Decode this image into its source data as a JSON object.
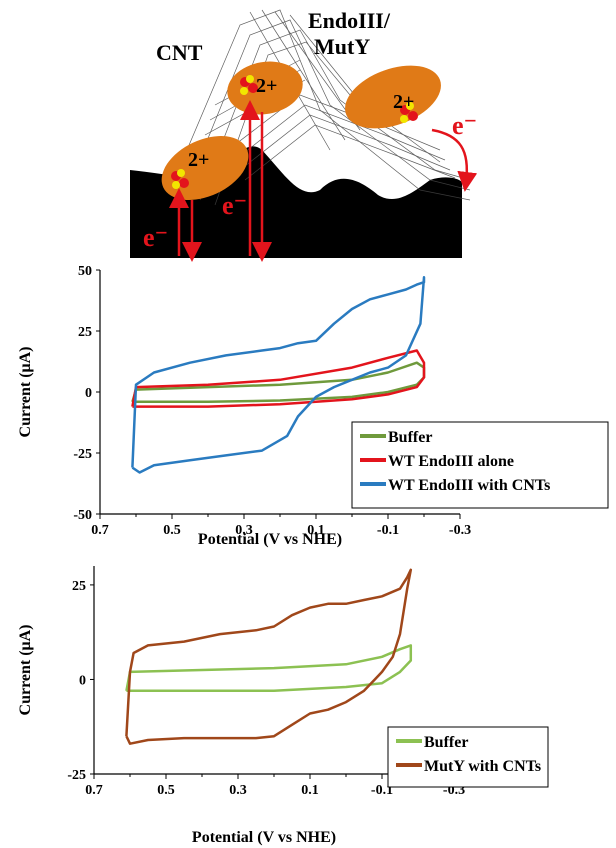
{
  "schematic": {
    "label_cnt": "CNT",
    "label_enzyme_line1": "EndoIII/",
    "label_enzyme_line2": "MutY",
    "cluster_charge": "2+",
    "electron": "e⁻",
    "colors": {
      "protein": "#e07a17",
      "arrow": "#e3141c",
      "surface": "#000000",
      "cluster_iron": "#e3141c",
      "cluster_sulfur": "#f2e600"
    }
  },
  "chart_data": [
    {
      "type": "line",
      "title": "",
      "xlabel": "Potential (V vs NHE)",
      "ylabel": "Current (μA)",
      "xlim": [
        0.7,
        -0.3
      ],
      "ylim": [
        -50,
        50
      ],
      "x_ticks": [
        "0.7",
        "0.5",
        "0.3",
        "0.1",
        "-0.1",
        "-0.3"
      ],
      "y_ticks": [
        "50",
        "25",
        "0",
        "-25",
        "-50"
      ],
      "y_tick_values": [
        50,
        25,
        0,
        -25,
        -50
      ],
      "legend_position": "right",
      "series": [
        {
          "name": "Buffer",
          "color": "#6f9a3c",
          "x": [
            0.61,
            0.4,
            0.2,
            0.0,
            -0.1,
            -0.18,
            -0.2,
            -0.2,
            -0.18,
            -0.1,
            0.0,
            0.2,
            0.4,
            0.6,
            0.61
          ],
          "y": [
            -4,
            -4,
            -3.5,
            -2,
            0,
            3,
            6,
            10,
            12,
            8,
            5,
            3,
            2,
            1,
            -4
          ]
        },
        {
          "name": "WT EndoIII alone",
          "color": "#e3141c",
          "x": [
            0.61,
            0.4,
            0.2,
            0.0,
            -0.1,
            -0.18,
            -0.2,
            -0.2,
            -0.18,
            -0.1,
            0.0,
            0.2,
            0.4,
            0.6,
            0.61
          ],
          "y": [
            -6,
            -6,
            -5,
            -3,
            -1,
            2,
            6,
            12,
            17,
            14,
            10,
            5,
            3,
            2,
            -6
          ]
        },
        {
          "name": "WT EndoIII with CNTs",
          "color": "#2a7bc0",
          "x": [
            0.61,
            0.59,
            0.55,
            0.45,
            0.35,
            0.25,
            0.18,
            0.15,
            0.1,
            0.05,
            0.0,
            -0.05,
            -0.1,
            -0.15,
            -0.19,
            -0.2,
            -0.2,
            -0.18,
            -0.15,
            -0.1,
            -0.05,
            0.0,
            0.05,
            0.1,
            0.15,
            0.2,
            0.25,
            0.35,
            0.45,
            0.55,
            0.6,
            0.61
          ],
          "y": [
            -31,
            -33,
            -30,
            -28,
            -26,
            -24,
            -18,
            -10,
            -2,
            2,
            5,
            8,
            10,
            15,
            28,
            47,
            45,
            44,
            42,
            40,
            38,
            34,
            28,
            21,
            20,
            18,
            17,
            15,
            12,
            8,
            3,
            -31
          ]
        }
      ]
    },
    {
      "type": "line",
      "title": "",
      "xlabel": "Potential (V vs NHE)",
      "ylabel": "Current (μA)",
      "xlim": [
        0.7,
        -0.3
      ],
      "ylim": [
        -25,
        30
      ],
      "x_ticks": [
        "0.7",
        "0.5",
        "0.3",
        "0.1",
        "-0.1",
        "-0.3"
      ],
      "y_ticks": [
        "25",
        "0",
        "-25"
      ],
      "y_tick_values": [
        25,
        0,
        -25
      ],
      "legend_position": "bottom-right",
      "series": [
        {
          "name": "Buffer",
          "color": "#8cc152",
          "x": [
            0.61,
            0.4,
            0.2,
            0.0,
            -0.1,
            -0.15,
            -0.18,
            -0.18,
            -0.15,
            -0.1,
            0.0,
            0.2,
            0.4,
            0.6,
            0.61
          ],
          "y": [
            -3,
            -3,
            -3,
            -2,
            -1,
            2,
            5,
            9,
            8,
            6,
            4,
            3,
            2.5,
            2,
            -3
          ]
        },
        {
          "name": "MutY with CNTs",
          "color": "#a0471a",
          "x": [
            0.61,
            0.6,
            0.55,
            0.45,
            0.35,
            0.25,
            0.2,
            0.15,
            0.1,
            0.05,
            0.0,
            -0.05,
            -0.08,
            -0.1,
            -0.13,
            -0.15,
            -0.16,
            -0.17,
            -0.18,
            -0.17,
            -0.15,
            -0.1,
            -0.05,
            0.0,
            0.05,
            0.1,
            0.15,
            0.2,
            0.25,
            0.35,
            0.45,
            0.55,
            0.59,
            0.6,
            0.61
          ],
          "y": [
            -15,
            -17,
            -16,
            -15.5,
            -15.5,
            -15.5,
            -15,
            -12,
            -9,
            -8,
            -6,
            -3,
            0,
            2,
            6,
            12,
            18,
            24,
            29,
            27,
            24,
            22,
            21,
            20,
            20,
            19,
            17,
            14,
            13,
            12,
            10,
            9,
            7,
            2,
            -15
          ]
        }
      ]
    }
  ]
}
